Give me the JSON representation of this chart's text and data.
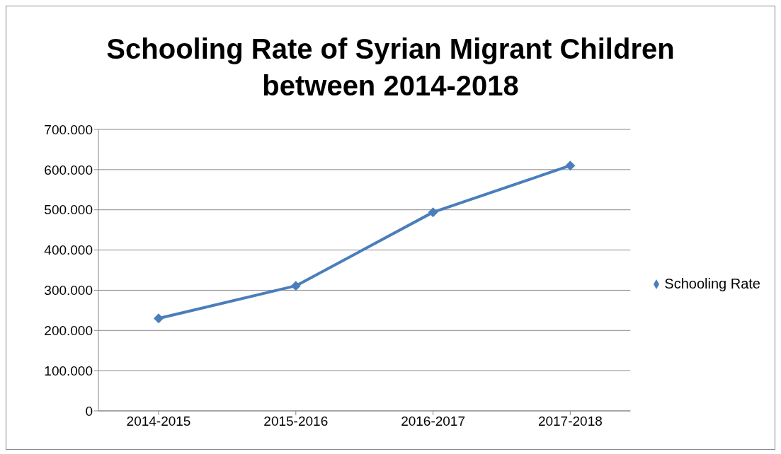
{
  "chart_data": {
    "type": "line",
    "title": "Schooling Rate of Syrian Migrant Children between 2014-2018",
    "categories": [
      "2014-2015",
      "2015-2016",
      "2016-2017",
      "2017-2018"
    ],
    "series": [
      {
        "name": "Schooling Rate",
        "color": "#4a7ebb",
        "values": [
          230000,
          311000,
          494000,
          610000
        ]
      }
    ],
    "ylim": [
      0,
      700000
    ],
    "yticks": [
      0,
      {
        "value": 100000,
        "label": "100.000"
      },
      {
        "value": 200000,
        "label": "200.000"
      },
      {
        "value": 300000,
        "label": "300.000"
      },
      {
        "value": 400000,
        "label": "400.000"
      },
      {
        "value": 500000,
        "label": "500.000"
      },
      {
        "value": 600000,
        "label": "600.000"
      },
      {
        "value": 700000,
        "label": "700.000"
      }
    ],
    "grid": "y",
    "legend": "right",
    "marker": "diamond",
    "line_style": "solid"
  }
}
